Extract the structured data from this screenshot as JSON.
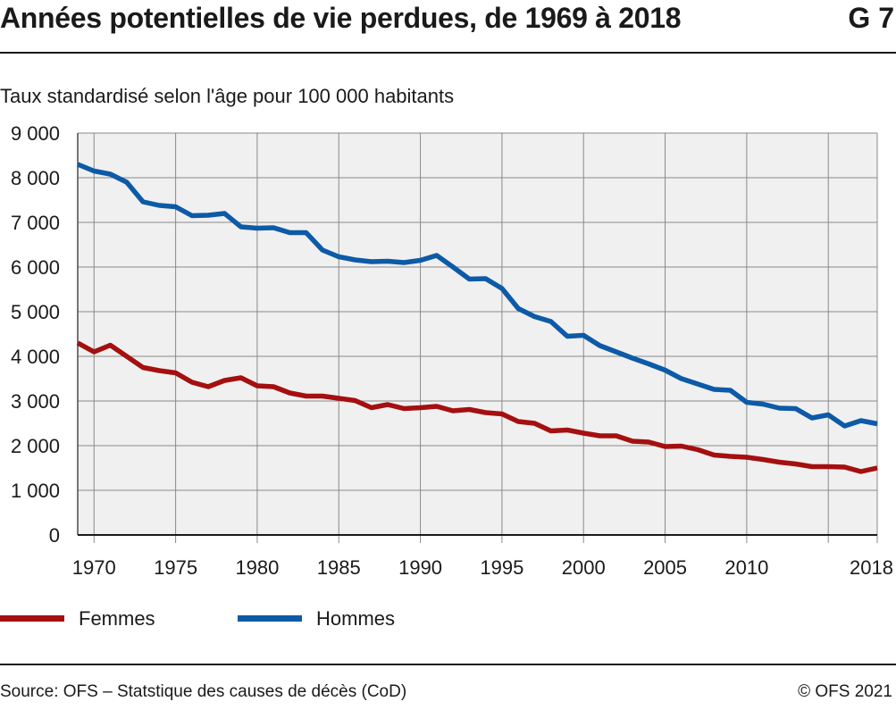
{
  "header": {
    "title": "Années potentielles de vie perdues, de 1969 à 2018",
    "figure_number": "G 7"
  },
  "footer": {
    "source": "Source: OFS – Statstique des causes de décès (CoD)",
    "copyright": "© OFS 2021"
  },
  "chart_data": {
    "type": "line",
    "title": "Années potentielles de vie perdues, de 1969 à 2018",
    "subtitle": "Taux standardisé selon l'âge pour 100 000 habitants",
    "xlabel": "",
    "ylabel": "Taux standardisé selon l'âge pour 100 000 habitants",
    "xlim": [
      1969,
      2018
    ],
    "ylim": [
      0,
      9000
    ],
    "x_ticks": [
      1970,
      1975,
      1980,
      1985,
      1990,
      1995,
      2000,
      2005,
      2010,
      2018
    ],
    "x_tick_labels": [
      "1970",
      "1975",
      "1980",
      "1985",
      "1990",
      "1995",
      "2000",
      "2005",
      "2010",
      "2018"
    ],
    "x_minor_ticks": [
      1970,
      1975,
      1980,
      1985,
      1990,
      1995,
      2000,
      2005,
      2010,
      2015,
      2018
    ],
    "y_ticks": [
      0,
      1000,
      2000,
      3000,
      4000,
      5000,
      6000,
      7000,
      8000,
      9000
    ],
    "y_tick_labels": [
      "0",
      "1 000",
      "2 000",
      "3 000",
      "4 000",
      "5 000",
      "6 000",
      "7 000",
      "8 000",
      "9 000"
    ],
    "grid": true,
    "legend_position": "bottom-left",
    "x": [
      1969,
      1970,
      1971,
      1972,
      1973,
      1974,
      1975,
      1976,
      1977,
      1978,
      1979,
      1980,
      1981,
      1982,
      1983,
      1984,
      1985,
      1986,
      1987,
      1988,
      1989,
      1990,
      1991,
      1992,
      1993,
      1994,
      1995,
      1996,
      1997,
      1998,
      1999,
      2000,
      2001,
      2002,
      2003,
      2004,
      2005,
      2006,
      2007,
      2008,
      2009,
      2010,
      2011,
      2012,
      2013,
      2014,
      2015,
      2016,
      2017,
      2018
    ],
    "series": [
      {
        "name": "Femmes",
        "color": "#a50f0f",
        "values": [
          4300,
          4100,
          4250,
          4000,
          3750,
          3680,
          3630,
          3420,
          3320,
          3460,
          3520,
          3340,
          3320,
          3180,
          3110,
          3110,
          3060,
          3010,
          2850,
          2920,
          2830,
          2850,
          2880,
          2780,
          2810,
          2740,
          2710,
          2540,
          2500,
          2330,
          2350,
          2280,
          2220,
          2220,
          2100,
          2080,
          1980,
          1990,
          1910,
          1790,
          1760,
          1740,
          1690,
          1630,
          1590,
          1530,
          1530,
          1520,
          1420,
          1500
        ]
      },
      {
        "name": "Hommes",
        "color": "#0d5aa7",
        "values": [
          8300,
          8150,
          8080,
          7900,
          7460,
          7380,
          7350,
          7150,
          7160,
          7200,
          6900,
          6870,
          6880,
          6770,
          6770,
          6380,
          6230,
          6160,
          6120,
          6130,
          6100,
          6150,
          6260,
          6000,
          5730,
          5740,
          5520,
          5070,
          4890,
          4780,
          4450,
          4470,
          4240,
          4100,
          3960,
          3830,
          3690,
          3500,
          3380,
          3260,
          3240,
          2970,
          2930,
          2840,
          2830,
          2620,
          2690,
          2440,
          2560,
          2490
        ]
      }
    ]
  }
}
